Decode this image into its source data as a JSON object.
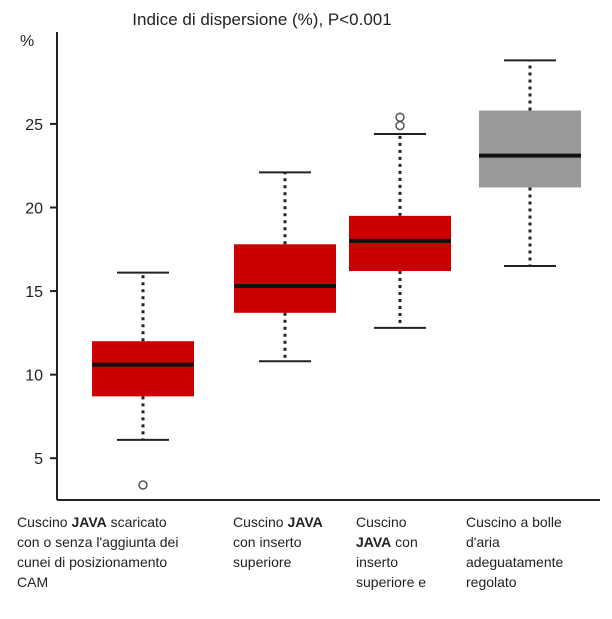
{
  "chart_data": {
    "type": "boxplot",
    "title": "Indice di dispersione (%), P<0.001",
    "ylabel": "%",
    "ylim": [
      2.5,
      30.5
    ],
    "yticks": [
      5,
      10,
      15,
      20,
      25
    ],
    "grid": false,
    "categories": [
      "Cuscino JAVA scaricato con o senza l'aggiunta dei cunei di posizionamento CAM",
      "Cuscino JAVA con inserto superiore",
      "Cuscino JAVA con inserto superiore e",
      "Cuscino a bolle d'aria adeguatamente regolato"
    ],
    "category_lines": [
      [
        "Cuscino |JAVA| scaricato",
        "con o senza l'aggiunta dei",
        "cunei di posizionamento",
        "CAM"
      ],
      [
        "Cuscino |JAVA|",
        "con inserto",
        "superiore"
      ],
      [
        "Cuscino",
        "|JAVA| con",
        "inserto",
        "superiore e"
      ],
      [
        "Cuscino a bolle",
        "d'aria",
        "adeguatamente",
        "regolato"
      ]
    ],
    "boxes": [
      {
        "whisker_low": 6.1,
        "q1": 8.7,
        "median": 10.6,
        "q3": 12.0,
        "whisker_high": 16.1,
        "outliers": [
          3.4
        ],
        "color": "#cc0000"
      },
      {
        "whisker_low": 10.8,
        "q1": 13.7,
        "median": 15.3,
        "q3": 17.8,
        "whisker_high": 22.1,
        "outliers": [],
        "color": "#cc0000"
      },
      {
        "whisker_low": 12.8,
        "q1": 16.2,
        "median": 18.0,
        "q3": 19.5,
        "whisker_high": 24.4,
        "outliers": [
          24.9,
          25.4
        ],
        "color": "#cc0000"
      },
      {
        "whisker_low": 16.5,
        "q1": 21.2,
        "median": 23.1,
        "q3": 25.8,
        "whisker_high": 28.8,
        "outliers": [],
        "color": "#999999"
      }
    ]
  }
}
